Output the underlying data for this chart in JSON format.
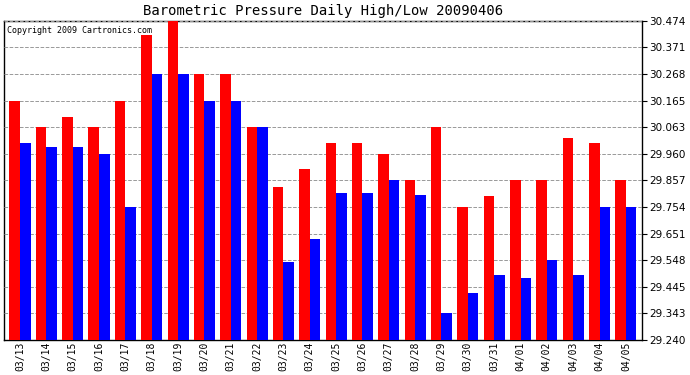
{
  "title": "Barometric Pressure Daily High/Low 20090406",
  "copyright": "Copyright 2009 Cartronics.com",
  "dates": [
    "03/13",
    "03/14",
    "03/15",
    "03/16",
    "03/17",
    "03/18",
    "03/19",
    "03/20",
    "03/21",
    "03/22",
    "03/23",
    "03/24",
    "03/25",
    "03/26",
    "03/27",
    "03/28",
    "03/29",
    "03/30",
    "03/31",
    "04/01",
    "04/02",
    "04/03",
    "04/04",
    "04/05"
  ],
  "highs": [
    30.165,
    30.063,
    30.103,
    30.063,
    30.165,
    30.42,
    30.474,
    30.268,
    30.268,
    30.063,
    29.83,
    29.9,
    30.0,
    30.0,
    29.96,
    29.857,
    30.063,
    29.754,
    29.795,
    29.857,
    29.857,
    30.02,
    30.0,
    29.857
  ],
  "lows": [
    30.0,
    29.985,
    29.985,
    29.96,
    29.754,
    30.268,
    30.268,
    30.165,
    30.165,
    30.063,
    29.54,
    29.63,
    29.81,
    29.81,
    29.857,
    29.8,
    29.343,
    29.42,
    29.49,
    29.48,
    29.548,
    29.49,
    29.754,
    29.754
  ],
  "high_color": "#ff0000",
  "low_color": "#0000ff",
  "bg_color": "#ffffff",
  "plot_bg_color": "#ffffff",
  "grid_color": "#999999",
  "ymin": 29.24,
  "ymax": 30.474,
  "yticks": [
    29.24,
    29.343,
    29.445,
    29.548,
    29.651,
    29.754,
    29.857,
    29.96,
    30.063,
    30.165,
    30.268,
    30.371,
    30.474
  ],
  "bar_width": 0.4
}
